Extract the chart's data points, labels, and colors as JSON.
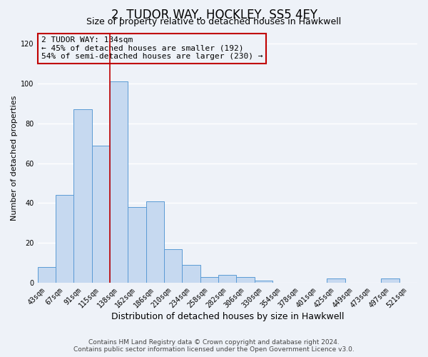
{
  "title": "2, TUDOR WAY, HOCKLEY, SS5 4EY",
  "subtitle": "Size of property relative to detached houses in Hawkwell",
  "xlabel": "Distribution of detached houses by size in Hawkwell",
  "ylabel": "Number of detached properties",
  "bar_labels": [
    "43sqm",
    "67sqm",
    "91sqm",
    "115sqm",
    "138sqm",
    "162sqm",
    "186sqm",
    "210sqm",
    "234sqm",
    "258sqm",
    "282sqm",
    "306sqm",
    "330sqm",
    "354sqm",
    "378sqm",
    "401sqm",
    "425sqm",
    "449sqm",
    "473sqm",
    "497sqm",
    "521sqm"
  ],
  "bar_values": [
    8,
    44,
    87,
    69,
    101,
    38,
    41,
    17,
    9,
    3,
    4,
    3,
    1,
    0,
    0,
    0,
    2,
    0,
    0,
    2,
    0
  ],
  "bar_color": "#c6d9f0",
  "bar_edge_color": "#5b9bd5",
  "ylim": [
    0,
    125
  ],
  "yticks": [
    0,
    20,
    40,
    60,
    80,
    100,
    120
  ],
  "property_size_label": "2 TUDOR WAY: 134sqm",
  "annotation_line1": "← 45% of detached houses are smaller (192)",
  "annotation_line2": "54% of semi-detached houses are larger (230) →",
  "vline_x": 3.5,
  "vline_color": "#c00000",
  "annotation_box_color": "#c00000",
  "footer_line1": "Contains HM Land Registry data © Crown copyright and database right 2024.",
  "footer_line2": "Contains public sector information licensed under the Open Government Licence v3.0.",
  "bg_color": "#eef2f8",
  "grid_color": "#ffffff",
  "title_fontsize": 12,
  "subtitle_fontsize": 9,
  "xlabel_fontsize": 9,
  "ylabel_fontsize": 8,
  "tick_fontsize": 7,
  "annotation_fontsize": 8,
  "footer_fontsize": 6.5
}
